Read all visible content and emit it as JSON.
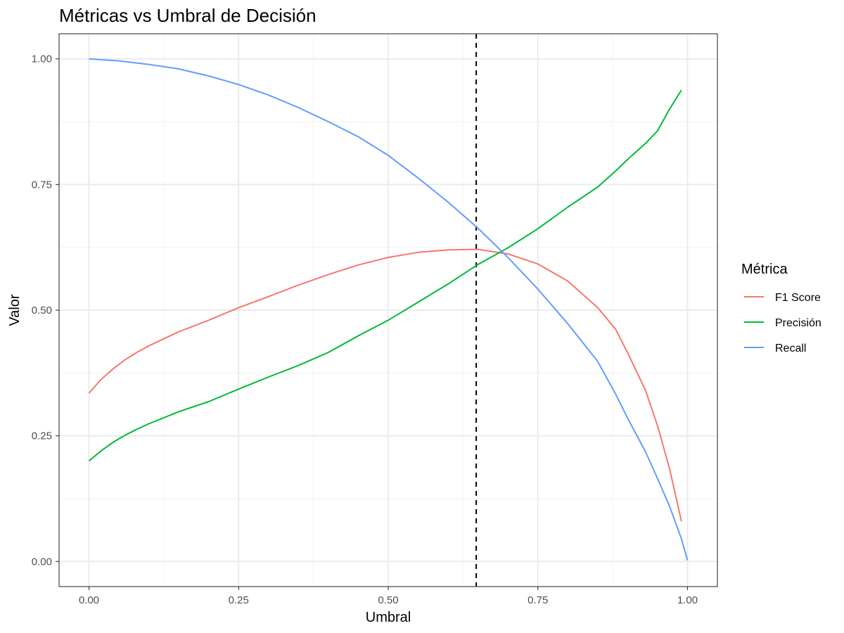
{
  "chart_data": {
    "type": "line",
    "title": "Métricas vs Umbral de Decisión",
    "xlabel": "Umbral",
    "ylabel": "Valor",
    "xlim": [
      -0.05,
      1.05
    ],
    "ylim": [
      -0.05,
      1.05
    ],
    "x_ticks": [
      0,
      0.25,
      0.5,
      0.75,
      1
    ],
    "x_tick_labels": [
      "0.00",
      "0.25",
      "0.50",
      "0.75",
      "1.00"
    ],
    "y_ticks": [
      0,
      0.25,
      0.5,
      0.75,
      1
    ],
    "y_tick_labels": [
      "0.00",
      "0.25",
      "0.50",
      "0.75",
      "1.00"
    ],
    "grid": true,
    "legend": {
      "title": "Métrica",
      "placement": "right"
    },
    "reference_line": {
      "x": 0.647,
      "style": "dashed",
      "color": "#000000"
    },
    "series": [
      {
        "name": "F1 Score",
        "color": "#F8766D",
        "x": [
          0,
          0.02,
          0.04,
          0.06,
          0.08,
          0.1,
          0.15,
          0.2,
          0.25,
          0.3,
          0.35,
          0.4,
          0.45,
          0.5,
          0.55,
          0.6,
          0.65,
          0.7,
          0.75,
          0.8,
          0.85,
          0.88,
          0.9,
          0.93,
          0.95,
          0.97,
          0.99
        ],
        "values": [
          0.335,
          0.362,
          0.383,
          0.401,
          0.416,
          0.429,
          0.457,
          0.48,
          0.505,
          0.527,
          0.55,
          0.571,
          0.59,
          0.605,
          0.615,
          0.62,
          0.621,
          0.612,
          0.592,
          0.558,
          0.505,
          0.462,
          0.415,
          0.34,
          0.27,
          0.185,
          0.08
        ]
      },
      {
        "name": "Precisión",
        "color": "#00BA38",
        "x": [
          0,
          0.02,
          0.04,
          0.06,
          0.08,
          0.1,
          0.15,
          0.2,
          0.25,
          0.3,
          0.35,
          0.4,
          0.45,
          0.5,
          0.55,
          0.6,
          0.65,
          0.7,
          0.75,
          0.8,
          0.85,
          0.88,
          0.9,
          0.93,
          0.95,
          0.97,
          0.99
        ],
        "values": [
          0.2,
          0.22,
          0.237,
          0.251,
          0.263,
          0.274,
          0.298,
          0.318,
          0.343,
          0.367,
          0.39,
          0.416,
          0.449,
          0.48,
          0.516,
          0.552,
          0.591,
          0.624,
          0.662,
          0.705,
          0.745,
          0.777,
          0.8,
          0.832,
          0.857,
          0.9,
          0.938
        ]
      },
      {
        "name": "Recall",
        "color": "#619CFF",
        "x": [
          0,
          0.05,
          0.1,
          0.15,
          0.2,
          0.25,
          0.3,
          0.35,
          0.4,
          0.45,
          0.5,
          0.55,
          0.6,
          0.65,
          0.7,
          0.75,
          0.8,
          0.85,
          0.88,
          0.9,
          0.93,
          0.95,
          0.97,
          0.99,
          1.0
        ],
        "values": [
          1.0,
          0.996,
          0.989,
          0.98,
          0.966,
          0.949,
          0.928,
          0.903,
          0.875,
          0.845,
          0.808,
          0.763,
          0.715,
          0.663,
          0.605,
          0.542,
          0.473,
          0.398,
          0.333,
          0.285,
          0.218,
          0.165,
          0.11,
          0.045,
          0.002
        ]
      }
    ]
  }
}
